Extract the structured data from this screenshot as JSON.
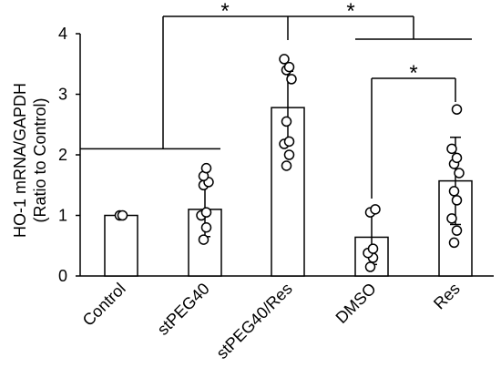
{
  "chart_data": {
    "type": "bar",
    "ylabel_lines": [
      "HO-1 mRNA/GAPDH",
      "(Ratio to Control)"
    ],
    "ylim": [
      0,
      4
    ],
    "yticks": [
      "0",
      "1",
      "2",
      "3",
      "4"
    ],
    "categories": [
      "Control",
      "stPEG40",
      "stPEG40/Res",
      "DMSO",
      "Res"
    ],
    "values": [
      1.0,
      1.1,
      2.78,
      0.64,
      1.57
    ],
    "errors": [
      0.0,
      0.45,
      0.6,
      0.45,
      0.72
    ],
    "points": [
      [
        1.0,
        1.0
      ],
      [
        0.6,
        0.8,
        1.0,
        1.05,
        1.5,
        1.55,
        1.65,
        1.78
      ],
      [
        1.82,
        2.0,
        2.18,
        2.22,
        2.55,
        3.25,
        3.4,
        3.45,
        3.58
      ],
      [
        0.15,
        0.3,
        0.38,
        0.45,
        1.05,
        1.1
      ],
      [
        0.55,
        0.75,
        0.95,
        1.25,
        1.4,
        1.7,
        1.85,
        1.95,
        2.1,
        2.75
      ]
    ],
    "significance": [
      "*",
      "*",
      "*"
    ],
    "grid": false,
    "bar_color": "#ffffff",
    "edge_color": "#000000"
  }
}
